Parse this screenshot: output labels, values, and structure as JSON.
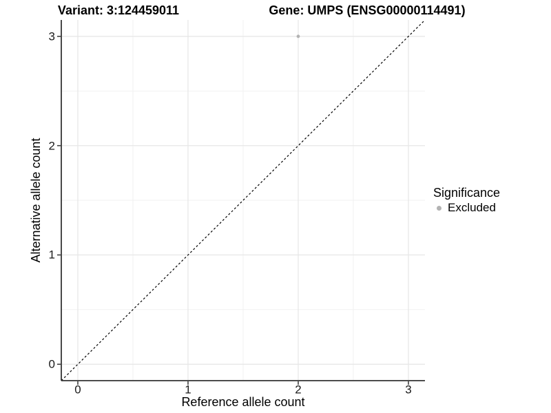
{
  "chart_data": {
    "type": "scatter",
    "titles": [
      "Variant: 3:124459011",
      "Gene: UMPS (ENSG00000114491)"
    ],
    "xlabel": "Reference allele count",
    "ylabel": "Alternative allele count",
    "xlim": [
      -0.15,
      3.15
    ],
    "ylim": [
      -0.15,
      3.15
    ],
    "xticks": [
      0,
      1,
      2,
      3
    ],
    "yticks": [
      0,
      1,
      2,
      3
    ],
    "xticks_minor": [
      0.5,
      1.5,
      2.5
    ],
    "yticks_minor": [
      0.5,
      1.5,
      2.5
    ],
    "grid": "major and minor light-gray gridlines on white panel",
    "legend": {
      "title": "Significance",
      "position": "right",
      "entries": [
        {
          "label": "Excluded",
          "color": "#b3b3b3",
          "marker": "circle"
        }
      ]
    },
    "series": [
      {
        "name": "Excluded",
        "color": "#b3b3b3",
        "points": [
          {
            "x": 2,
            "y": 3
          }
        ]
      }
    ],
    "reference_line": {
      "kind": "identity y=x",
      "style": "dashed",
      "color": "#000000"
    }
  },
  "colors": {
    "background": "#ffffff",
    "grid_major": "#e7e7e7",
    "grid_minor": "#f1f1f1",
    "axis_line": "#333333",
    "tick_text": "#1a1a1a",
    "point": "#b3b3b3",
    "reference_line": "#000000"
  }
}
